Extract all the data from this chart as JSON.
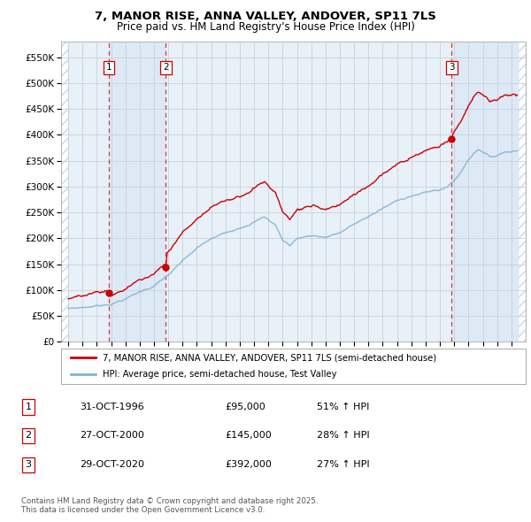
{
  "title_line1": "7, MANOR RISE, ANNA VALLEY, ANDOVER, SP11 7LS",
  "title_line2": "Price paid vs. HM Land Registry's House Price Index (HPI)",
  "ylim": [
    0,
    580000
  ],
  "yticks": [
    0,
    50000,
    100000,
    150000,
    200000,
    250000,
    300000,
    350000,
    400000,
    450000,
    500000,
    550000
  ],
  "xlim": [
    1993.5,
    2026.0
  ],
  "purchases": [
    {
      "date": 1996.83,
      "price": 95000,
      "label": "1"
    },
    {
      "date": 2000.83,
      "price": 145000,
      "label": "2"
    },
    {
      "date": 2020.83,
      "price": 392000,
      "label": "3"
    }
  ],
  "purchase_table": [
    {
      "num": "1",
      "date": "31-OCT-1996",
      "price": "£95,000",
      "pct": "51% ↑ HPI"
    },
    {
      "num": "2",
      "date": "27-OCT-2000",
      "price": "£145,000",
      "pct": "28% ↑ HPI"
    },
    {
      "num": "3",
      "date": "29-OCT-2020",
      "price": "£392,000",
      "pct": "27% ↑ HPI"
    }
  ],
  "legend_line1": "7, MANOR RISE, ANNA VALLEY, ANDOVER, SP11 7LS (semi-detached house)",
  "legend_line2": "HPI: Average price, semi-detached house, Test Valley",
  "footer": "Contains HM Land Registry data © Crown copyright and database right 2025.\nThis data is licensed under the Open Government Licence v3.0.",
  "red_color": "#cc0000",
  "blue_color": "#7fb3d3",
  "shade_color": "#dce8f5",
  "hatch_color": "#c8d8e8",
  "grid_color": "#c8d0dc",
  "plot_bg": "#e8f0f8"
}
